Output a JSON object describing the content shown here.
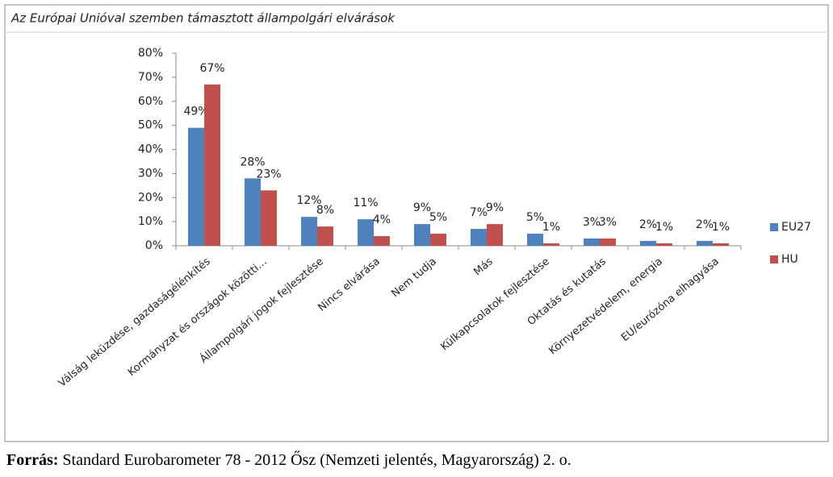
{
  "chart_data": {
    "type": "bar",
    "title": "Az Európai Unióval szemben támasztott állampolgári elvárások",
    "categories": [
      "Válság leküzdése, gazdaságélénkítés",
      "Kormányzat és országok közötti…",
      "Állampolgári jogok fejlesztése",
      "Nincs elvárása",
      "Nem tudja",
      "Más",
      "Külkapcsolatok fejlesztése",
      "Oktatás és kutatás",
      "Környezetvédelem, energia",
      "EU/eurózóna elhagyása"
    ],
    "series": [
      {
        "name": "EU27",
        "color": "#4f81bd",
        "values": [
          49,
          28,
          12,
          11,
          9,
          7,
          5,
          3,
          2,
          2
        ],
        "value_labels": [
          "49%",
          "28%",
          "12%",
          "11%",
          "9%",
          "7%",
          "5%",
          "3%",
          "2%",
          "2%"
        ]
      },
      {
        "name": "HU",
        "color": "#c0504d",
        "values": [
          67,
          23,
          8,
          4,
          5,
          9,
          1,
          3,
          1,
          1
        ],
        "value_labels": [
          "67%",
          "23%",
          "8%",
          "4%",
          "5%",
          "9%",
          "1%",
          "3%",
          "1%",
          "1%"
        ]
      }
    ],
    "ylim": [
      0,
      80
    ],
    "yticks": [
      {
        "value": 0,
        "label": "0%"
      },
      {
        "value": 10,
        "label": "10%"
      },
      {
        "value": 20,
        "label": "20%"
      },
      {
        "value": 30,
        "label": "30%"
      },
      {
        "value": 40,
        "label": "40%"
      },
      {
        "value": 50,
        "label": "50%"
      },
      {
        "value": 60,
        "label": "60%"
      },
      {
        "value": 70,
        "label": "70%"
      },
      {
        "value": 80,
        "label": "80%"
      }
    ],
    "grid": false,
    "legend": "right"
  },
  "source": {
    "label": "Forrás:",
    "text": "Standard Eurobarometer 78 - 2012 Ősz (Nemzeti jelentés, Magyarország) 2. o."
  }
}
